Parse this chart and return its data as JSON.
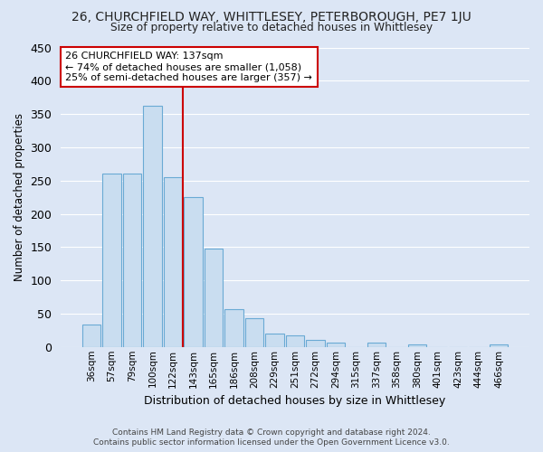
{
  "title": "26, CHURCHFIELD WAY, WHITTLESEY, PETERBOROUGH, PE7 1JU",
  "subtitle": "Size of property relative to detached houses in Whittlesey",
  "xlabel": "Distribution of detached houses by size in Whittlesey",
  "ylabel": "Number of detached properties",
  "categories": [
    "36sqm",
    "57sqm",
    "79sqm",
    "100sqm",
    "122sqm",
    "143sqm",
    "165sqm",
    "186sqm",
    "208sqm",
    "229sqm",
    "251sqm",
    "272sqm",
    "294sqm",
    "315sqm",
    "337sqm",
    "358sqm",
    "380sqm",
    "401sqm",
    "423sqm",
    "444sqm",
    "466sqm"
  ],
  "values": [
    33,
    260,
    260,
    362,
    255,
    225,
    148,
    57,
    43,
    20,
    18,
    10,
    7,
    0,
    6,
    0,
    4,
    0,
    0,
    0,
    4
  ],
  "bar_color": "#c9ddf0",
  "bar_edge_color": "#6aaad4",
  "background_color": "#dce6f5",
  "grid_color": "#ffffff",
  "vline_x": 4.5,
  "annotation_line1": "26 CHURCHFIELD WAY: 137sqm",
  "annotation_line2": "← 74% of detached houses are smaller (1,058)",
  "annotation_line3": "25% of semi-detached houses are larger (357) →",
  "annotation_box_color": "#ffffff",
  "annotation_box_edge": "#cc0000",
  "vline_color": "#cc0000",
  "footer_line1": "Contains HM Land Registry data © Crown copyright and database right 2024.",
  "footer_line2": "Contains public sector information licensed under the Open Government Licence v3.0.",
  "ylim": [
    0,
    450
  ],
  "yticks": [
    0,
    50,
    100,
    150,
    200,
    250,
    300,
    350,
    400,
    450
  ]
}
